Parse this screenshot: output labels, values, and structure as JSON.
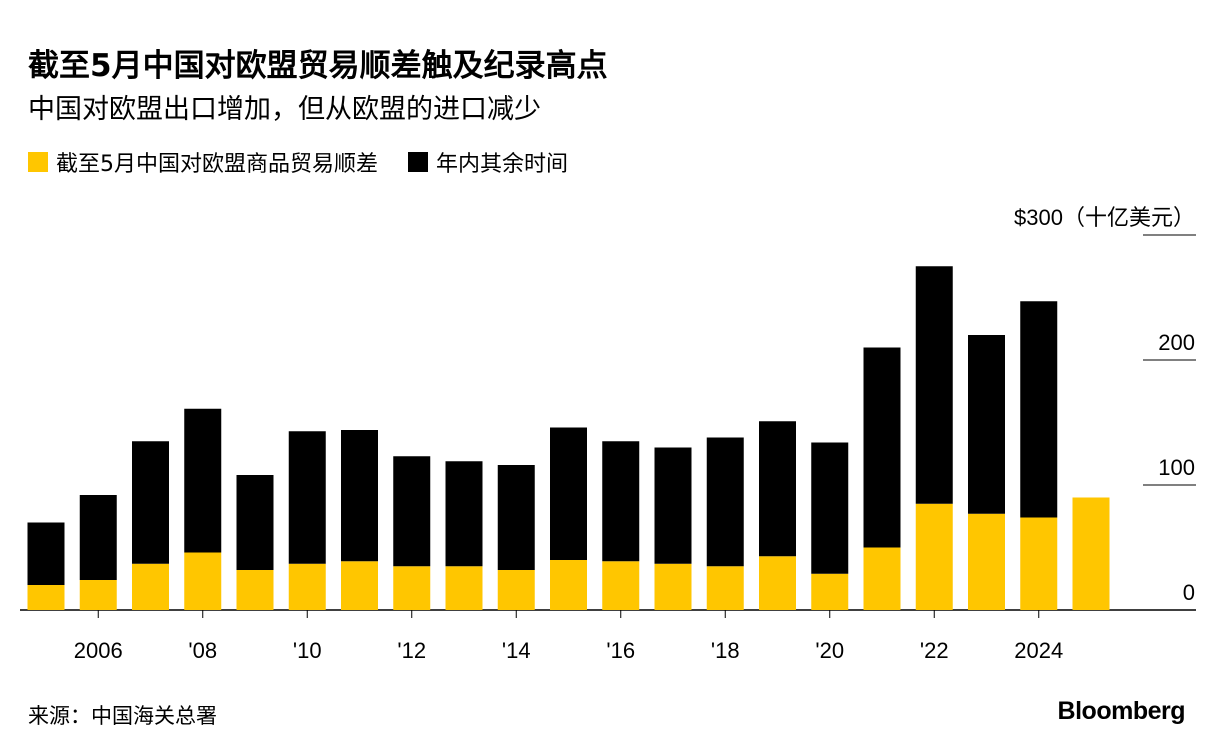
{
  "header": {
    "title": "截至5月中国对欧盟贸易顺差触及纪录高点",
    "subtitle": "中国对欧盟出口增加，但从欧盟的进口减少"
  },
  "legend": [
    {
      "label": "截至5月中国对欧盟商品贸易顺差",
      "color": "#FFC600"
    },
    {
      "label": "年内其余时间",
      "color": "#000000"
    }
  ],
  "footer": {
    "source": "来源：中国海关总署",
    "brand": "Bloomberg"
  },
  "chart_data": {
    "type": "bar",
    "stacked": true,
    "ylim": [
      0,
      300
    ],
    "yticks": [
      0,
      100,
      200,
      300
    ],
    "ytick_labels": [
      "0",
      "100",
      "200",
      "$300（十亿美元）"
    ],
    "x": [
      2005,
      2006,
      2007,
      2008,
      2009,
      2010,
      2011,
      2012,
      2013,
      2014,
      2015,
      2016,
      2017,
      2018,
      2019,
      2020,
      2021,
      2022,
      2023,
      2024,
      2025
    ],
    "xtick_labels": [
      {
        "year": 2006,
        "label": "2006"
      },
      {
        "year": 2008,
        "label": "'08"
      },
      {
        "year": 2010,
        "label": "'10"
      },
      {
        "year": 2012,
        "label": "'12"
      },
      {
        "year": 2014,
        "label": "'14"
      },
      {
        "year": 2016,
        "label": "'16"
      },
      {
        "year": 2018,
        "label": "'18"
      },
      {
        "year": 2020,
        "label": "'20"
      },
      {
        "year": 2022,
        "label": "'22"
      },
      {
        "year": 2024,
        "label": "2024"
      }
    ],
    "series": [
      {
        "name": "截至5月中国对欧盟商品贸易顺差",
        "color": "#FFC600",
        "values": [
          20,
          24,
          37,
          46,
          32,
          37,
          39,
          35,
          35,
          32,
          40,
          39,
          37,
          35,
          43,
          29,
          50,
          85,
          77,
          74,
          90
        ]
      },
      {
        "name": "年内其余时间",
        "color": "#000000",
        "values": [
          50,
          68,
          98,
          115,
          76,
          106,
          105,
          88,
          84,
          84,
          106,
          96,
          93,
          103,
          108,
          105,
          160,
          190,
          143,
          173,
          0
        ]
      }
    ]
  }
}
